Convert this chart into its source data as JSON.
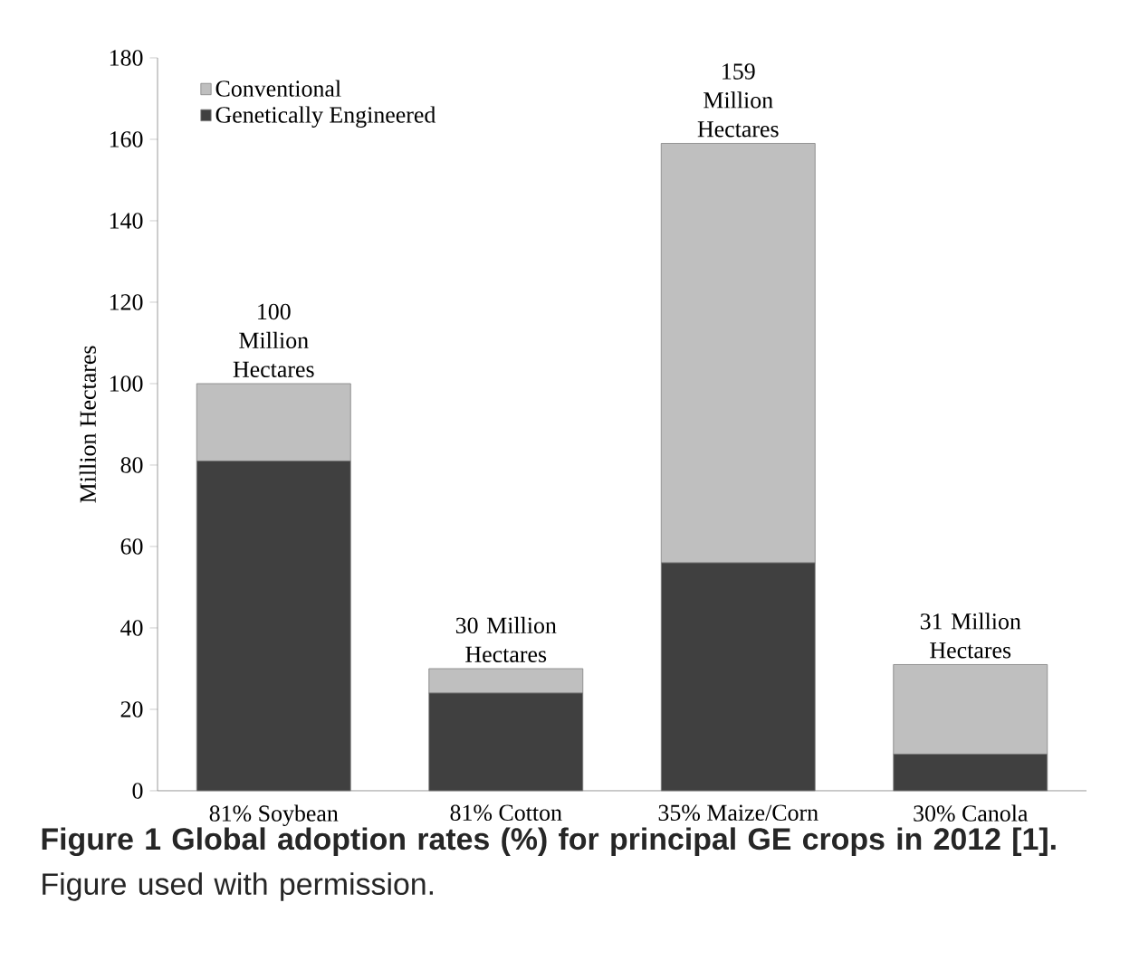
{
  "chart_data": {
    "type": "bar",
    "stacked": true,
    "categories": [
      "81% Soybean",
      "81% Cotton",
      "35% Maize/Corn",
      "30% Canola"
    ],
    "ylabel": "Million Hectares",
    "ylim": [
      0,
      180
    ],
    "yticks": [
      0,
      20,
      40,
      60,
      80,
      100,
      120,
      140,
      160,
      180
    ],
    "series": [
      {
        "name": "Genetically Engineered",
        "color": "#404040",
        "values": [
          81,
          24,
          56,
          9
        ]
      },
      {
        "name": "Conventional",
        "color": "#bfbfbf",
        "values": [
          19,
          6,
          103,
          22
        ]
      }
    ],
    "totals": [
      "100 Million Hectares",
      "30 Million Hectares",
      "159 Million Hectares",
      "31 Million Hectares"
    ],
    "legend": "top left",
    "grid": false,
    "annotations": [
      "**Figure 1 Global adoption rates (%) for principal GE crops in 2012 [1].** Figure used with permission."
    ]
  }
}
